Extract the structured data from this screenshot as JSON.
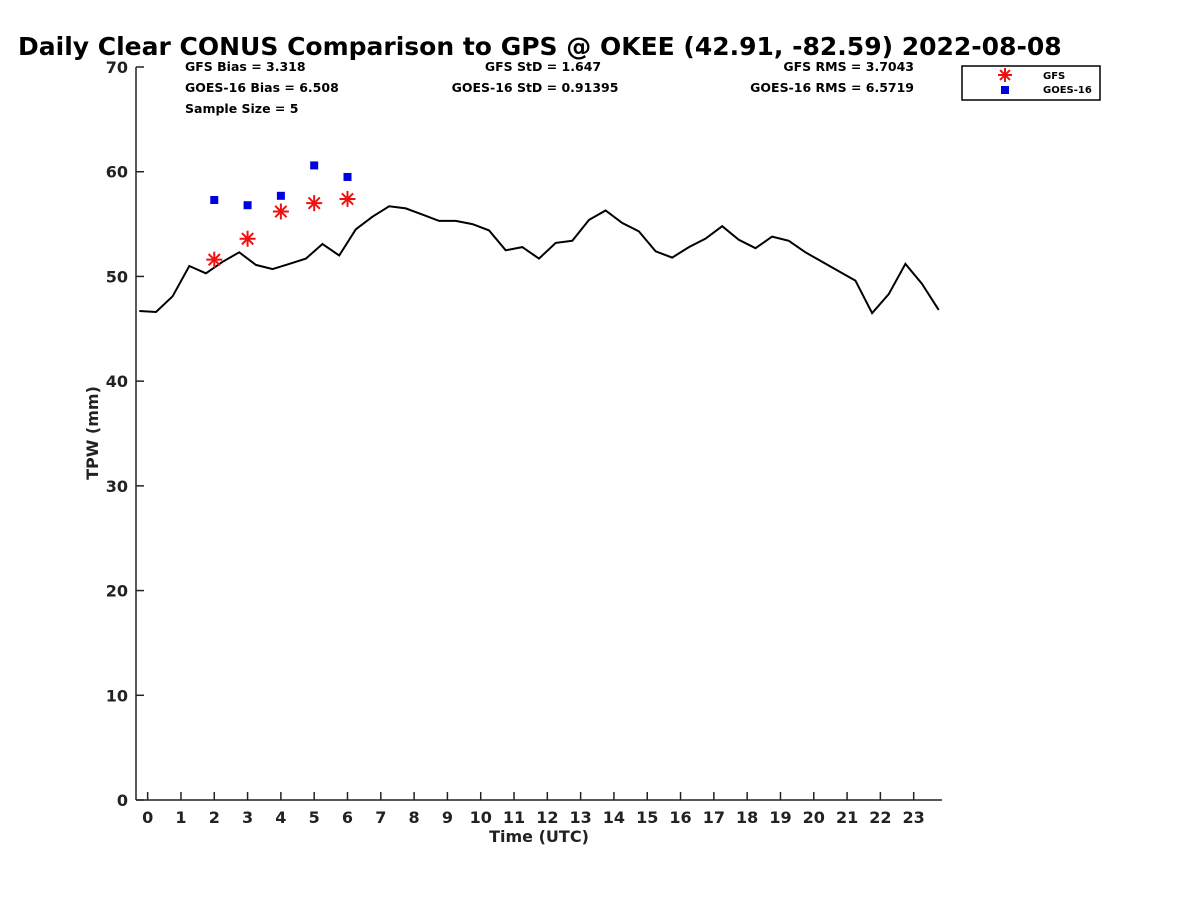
{
  "chart_data": {
    "type": "line",
    "title": "Daily Clear CONUS Comparison to GPS @ OKEE (42.91, -82.59) 2022-08-08",
    "xlabel": "Time (UTC)",
    "ylabel": "TPW (mm)",
    "xlim": [
      -0.35,
      23.85
    ],
    "ylim": [
      0,
      70
    ],
    "xticks": [
      0,
      1,
      2,
      3,
      4,
      5,
      6,
      7,
      8,
      9,
      10,
      11,
      12,
      13,
      14,
      15,
      16,
      17,
      18,
      19,
      20,
      21,
      22,
      23
    ],
    "yticks": [
      0,
      10,
      20,
      30,
      40,
      50,
      60,
      70
    ],
    "grid": false,
    "legend_position": "top-right",
    "stats": {
      "gfs_bias": "GFS Bias = 3.318",
      "goes_bias": "GOES-16 Bias = 6.508",
      "sample_size": "Sample Size = 5",
      "gfs_std": "GFS StD = 1.647",
      "goes_std": "GOES-16 StD = 0.91395",
      "gfs_rms": "GFS RMS = 3.7043",
      "goes_rms": "GOES-16 RMS = 6.5719"
    },
    "series": [
      {
        "kind": "line",
        "color": "#000000",
        "x": [
          -0.25,
          0.25,
          0.75,
          1.25,
          1.75,
          2.25,
          2.75,
          3.25,
          3.75,
          4.25,
          4.75,
          5.25,
          5.75,
          6.25,
          6.75,
          7.25,
          7.75,
          8.25,
          8.75,
          9.25,
          9.75,
          10.25,
          10.75,
          11.25,
          11.75,
          12.25,
          12.75,
          13.25,
          13.75,
          14.25,
          14.75,
          15.25,
          15.75,
          16.25,
          16.75,
          17.25,
          17.75,
          18.25,
          18.75,
          19.25,
          19.75,
          20.25,
          20.75,
          21.25,
          21.75,
          22.25,
          22.75,
          23.25,
          23.75
        ],
        "values": [
          46.7,
          46.6,
          48.1,
          51.0,
          50.3,
          51.4,
          52.3,
          51.1,
          50.7,
          51.2,
          51.7,
          53.1,
          52.0,
          54.5,
          55.7,
          56.7,
          56.5,
          55.9,
          55.3,
          55.3,
          55.0,
          54.4,
          52.5,
          52.8,
          51.7,
          53.2,
          53.4,
          55.4,
          56.3,
          55.1,
          54.3,
          52.4,
          51.8,
          52.8,
          53.6,
          54.8,
          53.5,
          52.7,
          53.8,
          53.4,
          52.3,
          51.4,
          50.5,
          49.6,
          46.5,
          48.3,
          51.2,
          49.3,
          46.8
        ]
      },
      {
        "kind": "scatter",
        "name": "GFS",
        "marker": "asterisk",
        "color": "#ee1111",
        "x": [
          2.0,
          3.0,
          4.0,
          5.0,
          6.0
        ],
        "values": [
          51.6,
          53.6,
          56.2,
          57.0,
          57.4
        ]
      },
      {
        "kind": "scatter",
        "name": "GOES-16",
        "marker": "square",
        "color": "#0000dd",
        "x": [
          2.0,
          3.0,
          4.0,
          5.0,
          6.0
        ],
        "values": [
          57.3,
          56.8,
          57.7,
          60.6,
          59.5
        ]
      }
    ]
  }
}
